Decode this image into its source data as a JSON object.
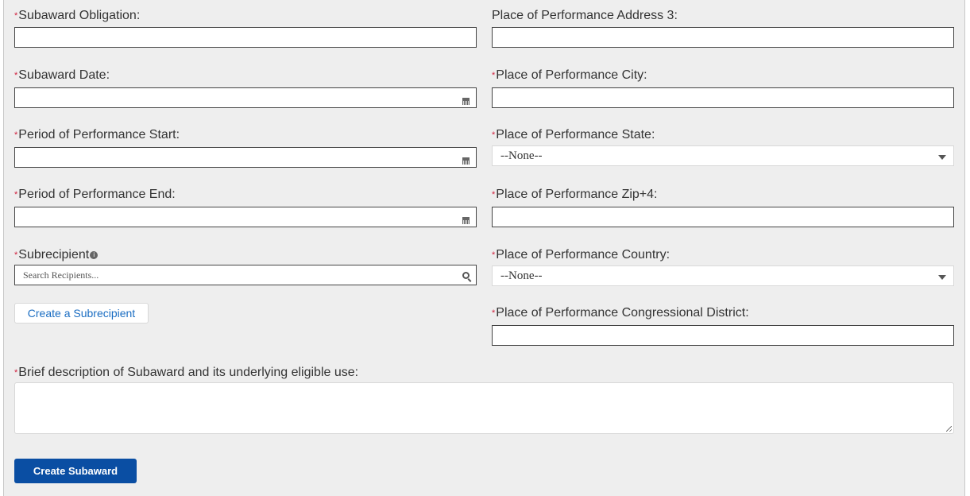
{
  "fields": {
    "subaward_obligation": "Subaward Obligation:",
    "subaward_date": "Subaward Date:",
    "pop_start": "Period of Performance Start:",
    "pop_end": "Period of Performance End:",
    "subrecipient": "Subrecipient",
    "subrecipient_placeholder": "Search Recipients...",
    "address3": "Place of Performance Address 3:",
    "city": "Place of Performance City:",
    "state": "Place of Performance State:",
    "state_value": "--None--",
    "zip": "Place of Performance Zip+4:",
    "country": "Place of Performance Country:",
    "country_value": "--None--",
    "district": "Place of Performance Congressional District:",
    "description": "Brief description of Subaward and its underlying eligible use:"
  },
  "required_mark": "*",
  "buttons": {
    "create_subrecipient": "Create a Subrecipient",
    "create_subaward": "Create Subaward"
  },
  "colors": {
    "primary": "#0a4ea3",
    "required": "#d0213e",
    "link": "#1a6dc2"
  }
}
